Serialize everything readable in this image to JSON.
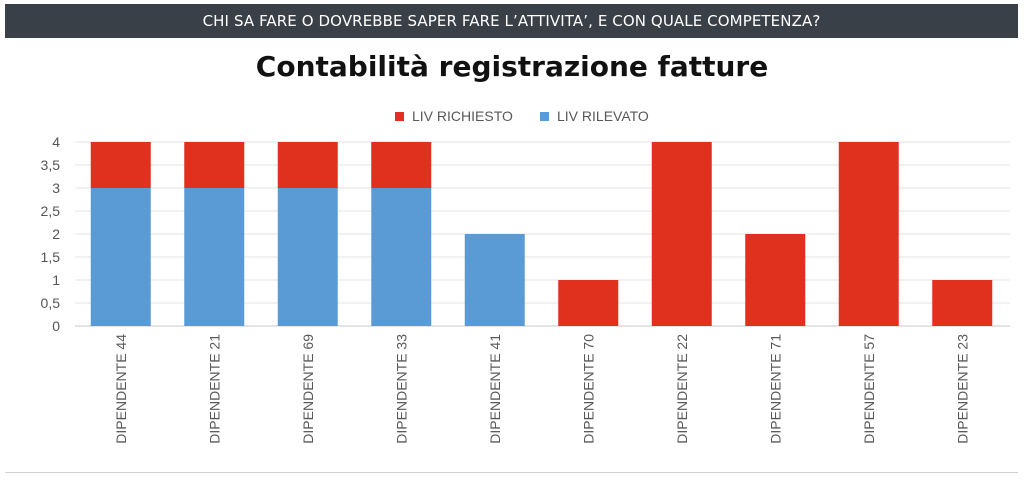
{
  "banner": {
    "text": "CHI SA FARE O DOVREBBE SAPER FARE L’ATTIVITA’, E CON QUALE COMPETENZA?"
  },
  "chart_data": {
    "type": "bar",
    "stacked": true,
    "title": "Contabilità registrazione fatture",
    "xlabel": "",
    "ylabel": "",
    "ylim": [
      0,
      4
    ],
    "yticks": [
      "0",
      "0,5",
      "1",
      "1,5",
      "2",
      "2,5",
      "3",
      "3,5",
      "4"
    ],
    "ytick_values": [
      0,
      0.5,
      1,
      1.5,
      2,
      2.5,
      3,
      3.5,
      4
    ],
    "grid": true,
    "legend_position": "top-center",
    "categories": [
      "DIPENDENTE 44",
      "DIPENDENTE 21",
      "DIPENDENTE 69",
      "DIPENDENTE 33",
      "DIPENDENTE 41",
      "DIPENDENTE 70",
      "DIPENDENTE 22",
      "DIPENDENTE 71",
      "DIPENDENTE 57",
      "DIPENDENTE 23"
    ],
    "series": [
      {
        "name": "LIV RILEVATO",
        "color": "#5b9bd5",
        "values": [
          3,
          3,
          3,
          3,
          2,
          0,
          0,
          0,
          0,
          0
        ]
      },
      {
        "name": "LIV RICHIESTO",
        "color": "#e0301e",
        "values": [
          1,
          1,
          1,
          1,
          0,
          1,
          4,
          2,
          4,
          1
        ]
      }
    ],
    "legend_order": [
      "LIV RICHIESTO",
      "LIV RILEVATO"
    ]
  }
}
